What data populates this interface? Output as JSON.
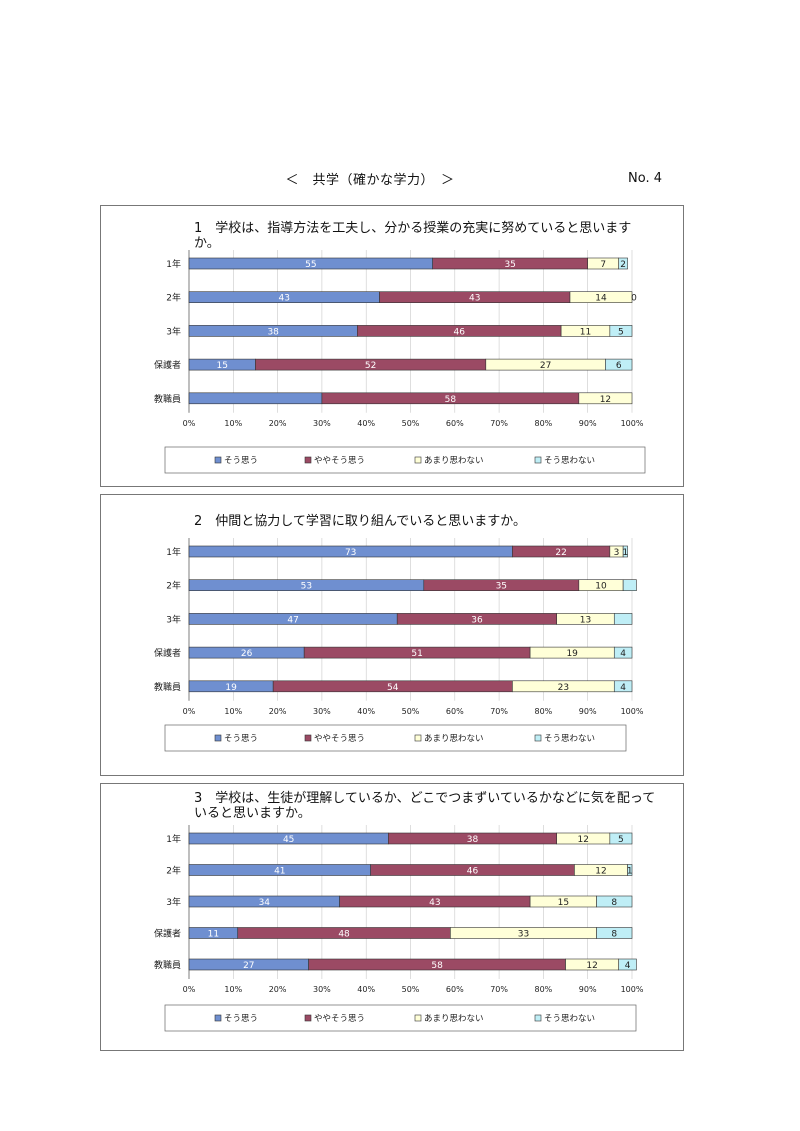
{
  "page": {
    "title": "＜　共学（確かな学力）　＞",
    "number": "No. 4"
  },
  "chart_data": [
    {
      "type": "bar",
      "orientation": "horizontal",
      "stacked": true,
      "title": "1　学校は、指導方法を工夫し、分かる授業の充実に努めていると思いますか。",
      "title_lines": [
        "1　学校は、指導方法を工夫し、分かる授業の充実に努めていると思います",
        "か。"
      ],
      "categories": [
        "1年",
        "2年",
        "3年",
        "保護者",
        "教職員"
      ],
      "series": [
        {
          "name": "そう思う",
          "values": [
            55,
            43,
            38,
            15,
            30
          ]
        },
        {
          "name": "ややそう思う",
          "values": [
            35,
            43,
            46,
            52,
            58
          ]
        },
        {
          "name": "あまり思わない",
          "values": [
            7,
            14,
            11,
            27,
            12
          ]
        },
        {
          "name": "そう思わない",
          "values": [
            2,
            0,
            5,
            6,
            0
          ]
        }
      ],
      "labels": [
        [
          "55",
          "35",
          "7",
          "2"
        ],
        [
          "43",
          "43",
          "14",
          "0"
        ],
        [
          "38",
          "46",
          "11",
          "5"
        ],
        [
          "15",
          "52",
          "27",
          "6"
        ],
        [
          "",
          "58",
          "12",
          ""
        ]
      ],
      "x_ticks": [
        "0%",
        "10%",
        "20%",
        "30%",
        "40%",
        "50%",
        "60%",
        "70%",
        "80%",
        "90%",
        "100%"
      ],
      "xlim": [
        0,
        100
      ],
      "legend": "bottom"
    },
    {
      "type": "bar",
      "orientation": "horizontal",
      "stacked": true,
      "title": "2　仲間と協力して学習に取り組んでいると思いますか。",
      "title_lines": [
        "2　仲間と協力して学習に取り組んでいると思いますか。"
      ],
      "categories": [
        "1年",
        "2年",
        "3年",
        "保護者",
        "教職員"
      ],
      "series": [
        {
          "name": "そう思う",
          "values": [
            73,
            53,
            47,
            26,
            19
          ]
        },
        {
          "name": "ややそう思う",
          "values": [
            22,
            35,
            36,
            51,
            54
          ]
        },
        {
          "name": "あまり思わない",
          "values": [
            3,
            10,
            13,
            19,
            23
          ]
        },
        {
          "name": "そう思わない",
          "values": [
            1,
            3,
            4,
            4,
            4
          ]
        }
      ],
      "labels": [
        [
          "73",
          "22",
          "3",
          "1"
        ],
        [
          "53",
          "35",
          "10",
          ""
        ],
        [
          "47",
          "36",
          "13",
          ""
        ],
        [
          "26",
          "51",
          "19",
          "4"
        ],
        [
          "19",
          "54",
          "23",
          "4"
        ]
      ],
      "x_ticks": [
        "0%",
        "10%",
        "20%",
        "30%",
        "40%",
        "50%",
        "60%",
        "70%",
        "80%",
        "90%",
        "100%"
      ],
      "xlim": [
        0,
        100
      ],
      "legend": "bottom"
    },
    {
      "type": "bar",
      "orientation": "horizontal",
      "stacked": true,
      "title": "3　学校は、生徒が理解しているか、どこでつまずいているかなどに気を配っていると思いますか。",
      "title_lines": [
        "3　学校は、生徒が理解しているか、どこでつまずいているかなどに気を配って",
        "いると思いますか。"
      ],
      "categories": [
        "1年",
        "2年",
        "3年",
        "保護者",
        "教職員"
      ],
      "series": [
        {
          "name": "そう思う",
          "values": [
            45,
            41,
            34,
            11,
            27
          ]
        },
        {
          "name": "ややそう思う",
          "values": [
            38,
            46,
            43,
            48,
            58
          ]
        },
        {
          "name": "あまり思わない",
          "values": [
            12,
            12,
            15,
            33,
            12
          ]
        },
        {
          "name": "そう思わない",
          "values": [
            5,
            1,
            8,
            8,
            4
          ]
        }
      ],
      "labels": [
        [
          "45",
          "38",
          "12",
          "5"
        ],
        [
          "41",
          "46",
          "12",
          "1"
        ],
        [
          "34",
          "43",
          "15",
          "8"
        ],
        [
          "11",
          "48",
          "33",
          "8"
        ],
        [
          "27",
          "58",
          "12",
          "4"
        ]
      ],
      "x_ticks": [
        "0%",
        "10%",
        "20%",
        "30%",
        "40%",
        "50%",
        "60%",
        "70%",
        "80%",
        "90%",
        "100%"
      ],
      "xlim": [
        0,
        100
      ],
      "legend": "bottom"
    }
  ],
  "style": {
    "series_colors": [
      "#6f8fd0",
      "#9b4a64",
      "#ffffd8",
      "#bfeef6"
    ],
    "label_colors": [
      "#ffffff",
      "#ffffff",
      "#222222",
      "#222222"
    ]
  }
}
